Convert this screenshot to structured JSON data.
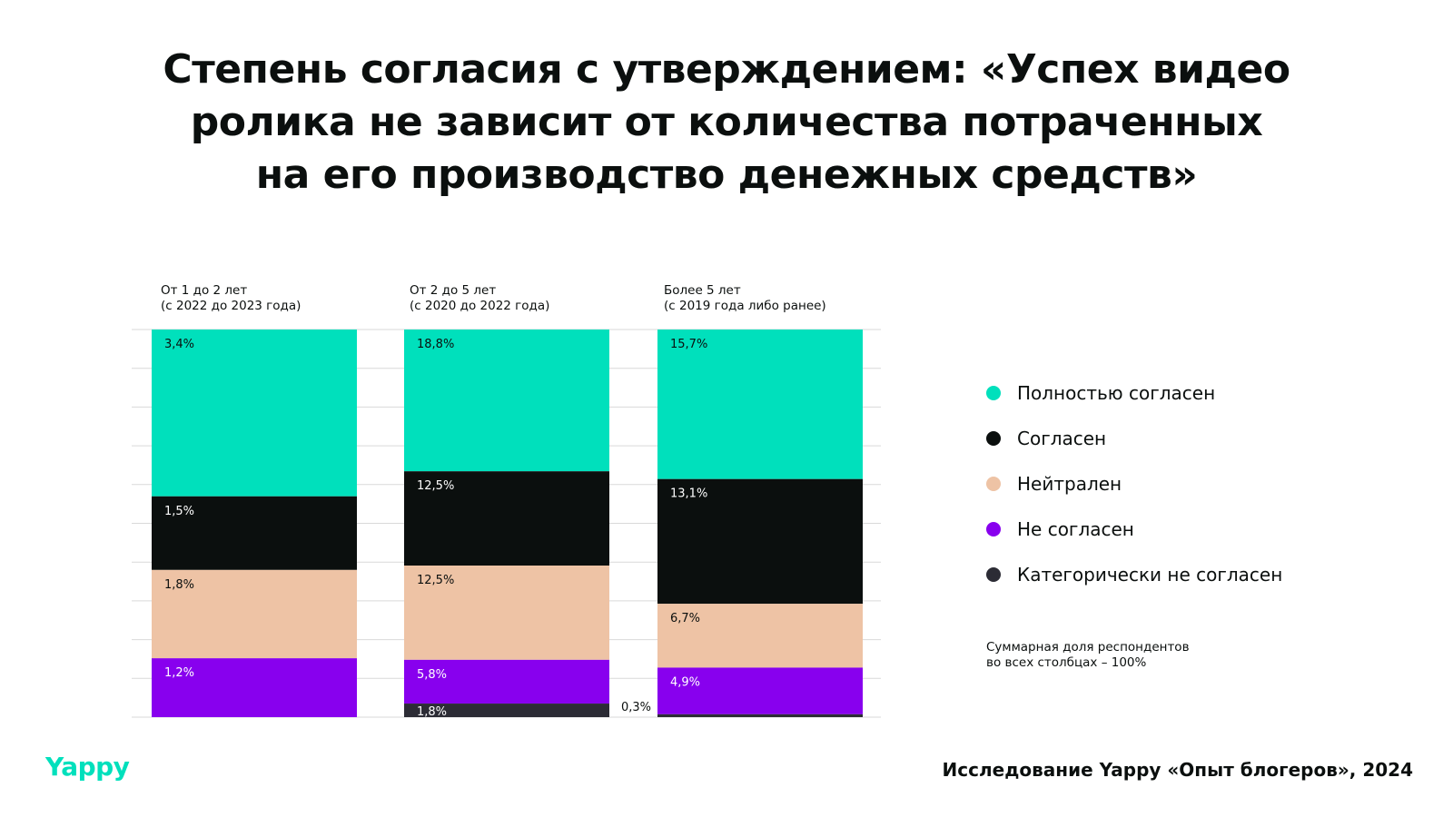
{
  "title_lines": [
    "Степень согласия с утверждением: «Успех видео",
    "ролика не зависит от количества потраченных",
    "на его производство денежных средств»"
  ],
  "colors": {
    "fully_agree": "#00e0bc",
    "agree": "#0b0f0e",
    "neutral": "#eec3a5",
    "disagree": "#8800ee",
    "strongly_disagree": "#2c2c35",
    "text_dark": "#0b0f0e",
    "text_light": "#ffffff",
    "brand": "#00e0bc",
    "gridline": "#d9d9d9"
  },
  "chart_data": {
    "type": "bar",
    "stacked": true,
    "categories": [
      [
        "От 1 до 2 лет",
        "(с 2022 до 2023 года)"
      ],
      [
        "От 2 до 5 лет",
        "(с 2020 до 2022 года)"
      ],
      [
        "Более 5 лет",
        "(с 2019 года либо ранее)"
      ]
    ],
    "series": [
      {
        "name": "Полностью согласен",
        "color_key": "fully_agree",
        "values": [
          3.4,
          18.8,
          15.7
        ],
        "labels": [
          "3,4%",
          "18,8%",
          "15,7%"
        ]
      },
      {
        "name": "Согласен",
        "color_key": "agree",
        "values": [
          1.5,
          12.5,
          13.1
        ],
        "labels": [
          "1,5%",
          "12,5%",
          "13,1%"
        ]
      },
      {
        "name": "Нейтрален",
        "color_key": "neutral",
        "values": [
          1.8,
          12.5,
          6.7
        ],
        "labels": [
          "1,8%",
          "12,5%",
          "6,7%"
        ]
      },
      {
        "name": "Не согласен",
        "color_key": "disagree",
        "values": [
          1.2,
          5.8,
          4.9
        ],
        "labels": [
          "1,2%",
          "5,8%",
          "4,9%"
        ]
      },
      {
        "name": "Категорически не согласен",
        "color_key": "strongly_disagree",
        "values": [
          0,
          1.8,
          0.3
        ],
        "labels": [
          "",
          "1,8%",
          "0,3%"
        ]
      }
    ],
    "normalized_per_column": true,
    "grid": true,
    "legend_position": "right",
    "note_lines": [
      "Суммарная доля респондентов",
      "во всех столбцах – 100%"
    ]
  },
  "logo": "Yappy",
  "source": "Исследование Yappy «Опыт блогеров», 2024"
}
